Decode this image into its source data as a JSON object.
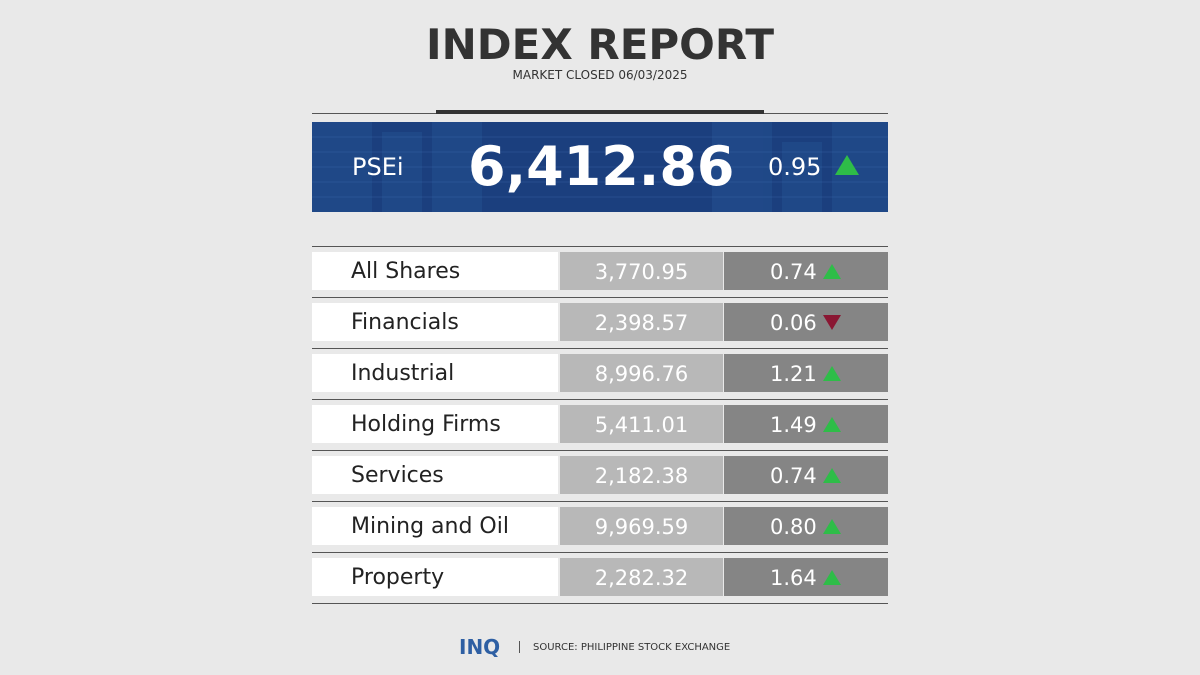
{
  "header": {
    "title": "INDEX REPORT",
    "subtitle": "MARKET CLOSED 06/03/2025"
  },
  "psei": {
    "label": "PSEi",
    "value": "6,412.86",
    "change": "0.95",
    "direction": "up"
  },
  "sectors": [
    {
      "name": "All Shares",
      "value": "3,770.95",
      "change": "0.74",
      "direction": "up"
    },
    {
      "name": "Financials",
      "value": "2,398.57",
      "change": "0.06",
      "direction": "down"
    },
    {
      "name": "Industrial",
      "value": "8,996.76",
      "change": "1.21",
      "direction": "up"
    },
    {
      "name": "Holding Firms",
      "value": "5,411.01",
      "change": "1.49",
      "direction": "up"
    },
    {
      "name": "Services",
      "value": "2,182.38",
      "change": "0.74",
      "direction": "up"
    },
    {
      "name": "Mining and Oil",
      "value": "9,969.59",
      "change": "0.80",
      "direction": "up"
    },
    {
      "name": "Property",
      "value": "2,282.32",
      "change": "1.64",
      "direction": "up"
    }
  ],
  "footer": {
    "logo": "INQ",
    "source": "SOURCE: PHILIPPINE STOCK EXCHANGE"
  },
  "colors": {
    "background": "#e9e9e9",
    "banner": "#1b3f7e",
    "up_arrow": "#2ebd48",
    "down_arrow": "#8a1733",
    "value_cell": "#b8b8b8",
    "change_cell": "#858585",
    "logo": "#2e5fa3"
  },
  "icons": {
    "up": "triangle-up-icon",
    "down": "triangle-down-icon"
  }
}
